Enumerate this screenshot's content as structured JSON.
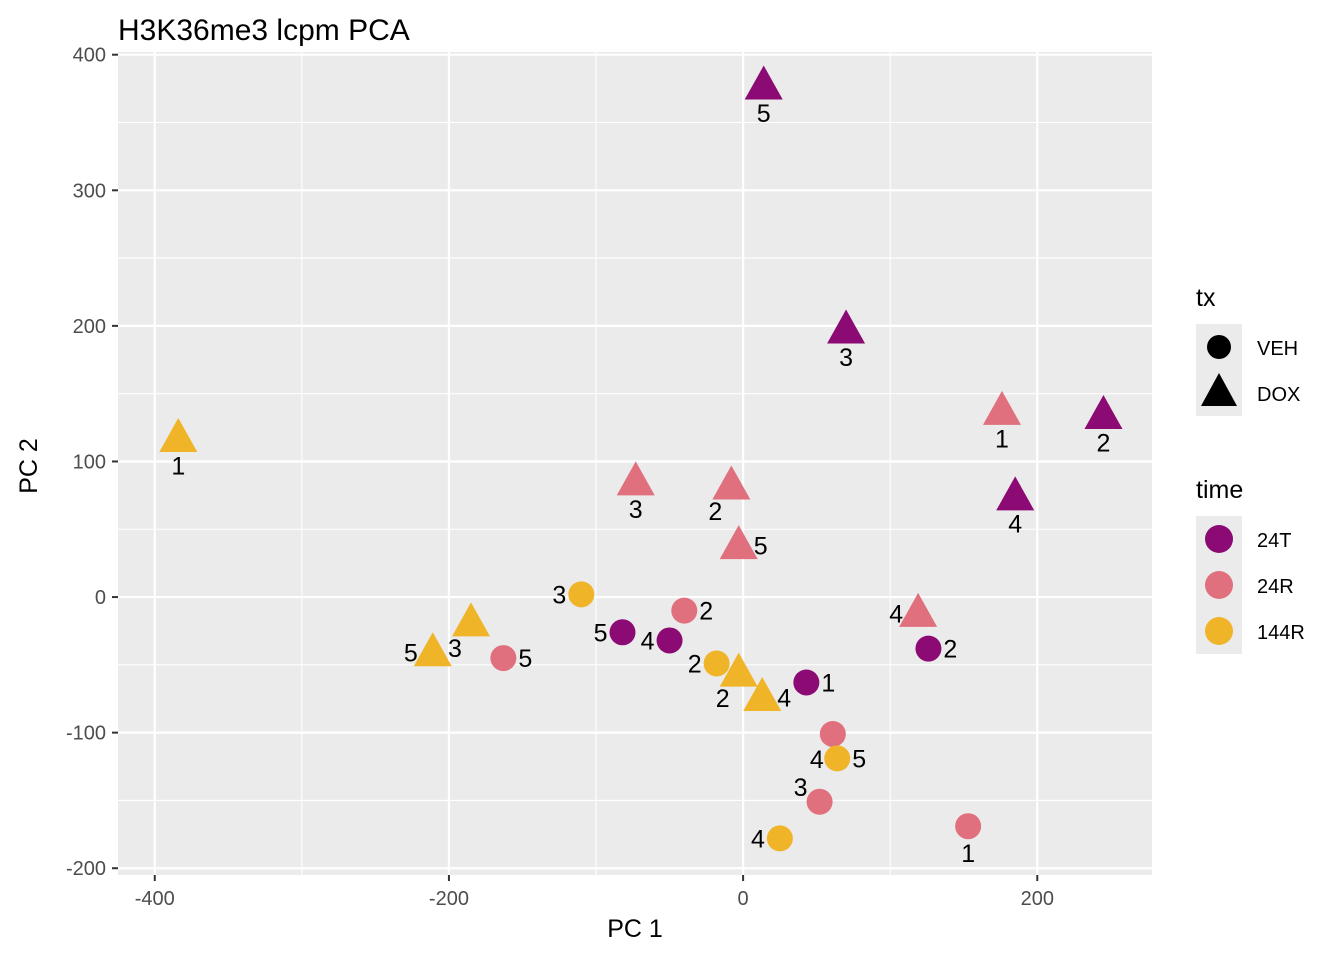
{
  "chart_data": {
    "type": "scatter",
    "title": "H3K36me3 lcpm PCA",
    "xlabel": "PC 1",
    "ylabel": "PC 2",
    "xlim": [
      -425,
      278
    ],
    "ylim": [
      -205,
      402
    ],
    "x_ticks": [
      -400,
      -200,
      0,
      200
    ],
    "x_tick_labels": [
      "-400",
      "-200",
      "0",
      "200"
    ],
    "y_ticks": [
      -200,
      -100,
      0,
      100,
      200,
      300,
      400
    ],
    "y_tick_labels": [
      "-200",
      "-100",
      "0",
      "100",
      "200",
      "300",
      "400"
    ],
    "grid": true,
    "legend": {
      "placement": "right",
      "shape_title": "tx",
      "shape_entries": [
        {
          "label": "VEH",
          "shape": "circle"
        },
        {
          "label": "DOX",
          "shape": "triangle"
        }
      ],
      "color_title": "time",
      "color_entries": [
        {
          "label": "24T",
          "color": "#8B0A73"
        },
        {
          "label": "24R",
          "color": "#E0707D"
        },
        {
          "label": "144R",
          "color": "#F0B428"
        }
      ]
    },
    "points": [
      {
        "x": 14,
        "y": 377,
        "tx": "DOX",
        "time": "24T",
        "label": "5",
        "label_pos": "below"
      },
      {
        "x": 70,
        "y": 197,
        "tx": "DOX",
        "time": "24T",
        "label": "3",
        "label_pos": "below"
      },
      {
        "x": 245,
        "y": 134,
        "tx": "DOX",
        "time": "24T",
        "label": "2",
        "label_pos": "below"
      },
      {
        "x": 185,
        "y": 74,
        "tx": "DOX",
        "time": "24T",
        "label": "4",
        "label_pos": "below"
      },
      {
        "x": 176,
        "y": 137,
        "tx": "DOX",
        "time": "24R",
        "label": "1",
        "label_pos": "below"
      },
      {
        "x": -73,
        "y": 85,
        "tx": "DOX",
        "time": "24R",
        "label": "3",
        "label_pos": "below"
      },
      {
        "x": -8,
        "y": 82,
        "tx": "DOX",
        "time": "24R",
        "label": "2",
        "label_pos": "below-left"
      },
      {
        "x": -3,
        "y": 38,
        "tx": "DOX",
        "time": "24R",
        "label": "5",
        "label_pos": "right"
      },
      {
        "x": 119,
        "y": -12,
        "tx": "DOX",
        "time": "24R",
        "label": "4",
        "label_pos": "left"
      },
      {
        "x": -384,
        "y": 117,
        "tx": "DOX",
        "time": "144R",
        "label": "1",
        "label_pos": "below"
      },
      {
        "x": -185,
        "y": -19,
        "tx": "DOX",
        "time": "144R",
        "label": "3",
        "label_pos": "below-left"
      },
      {
        "x": -211,
        "y": -41,
        "tx": "DOX",
        "time": "144R",
        "label": "5",
        "label_pos": "left"
      },
      {
        "x": -3,
        "y": -56,
        "tx": "DOX",
        "time": "144R",
        "label": "2",
        "label_pos": "below-left"
      },
      {
        "x": 13,
        "y": -74,
        "tx": "DOX",
        "time": "144R",
        "label": "4",
        "label_pos": "right"
      },
      {
        "x": -82,
        "y": -26,
        "tx": "VEH",
        "time": "24T",
        "label": "5",
        "label_pos": "left"
      },
      {
        "x": -50,
        "y": -32,
        "tx": "VEH",
        "time": "24T",
        "label": "4",
        "label_pos": "left"
      },
      {
        "x": 43,
        "y": -63,
        "tx": "VEH",
        "time": "24T",
        "label": "1",
        "label_pos": "right"
      },
      {
        "x": 126,
        "y": -38,
        "tx": "VEH",
        "time": "24T",
        "label": "2",
        "label_pos": "right"
      },
      {
        "x": -40,
        "y": -10,
        "tx": "VEH",
        "time": "24R",
        "label": "2",
        "label_pos": "right"
      },
      {
        "x": -163,
        "y": -45,
        "tx": "VEH",
        "time": "24R",
        "label": "5",
        "label_pos": "right"
      },
      {
        "x": 61,
        "y": -101,
        "tx": "VEH",
        "time": "24R",
        "label": "4",
        "label_pos": "below-left"
      },
      {
        "x": 52,
        "y": -151,
        "tx": "VEH",
        "time": "24R",
        "label": "3",
        "label_pos": "left-up"
      },
      {
        "x": 153,
        "y": -169,
        "tx": "VEH",
        "time": "24R",
        "label": "1",
        "label_pos": "below"
      },
      {
        "x": -110,
        "y": 2,
        "tx": "VEH",
        "time": "144R",
        "label": "3",
        "label_pos": "left"
      },
      {
        "x": -18,
        "y": -49,
        "tx": "VEH",
        "time": "144R",
        "label": "2",
        "label_pos": "left"
      },
      {
        "x": 64,
        "y": -119,
        "tx": "VEH",
        "time": "144R",
        "label": "5",
        "label_pos": "right"
      },
      {
        "x": 25,
        "y": -178,
        "tx": "VEH",
        "time": "144R",
        "label": "4",
        "label_pos": "left"
      }
    ]
  }
}
